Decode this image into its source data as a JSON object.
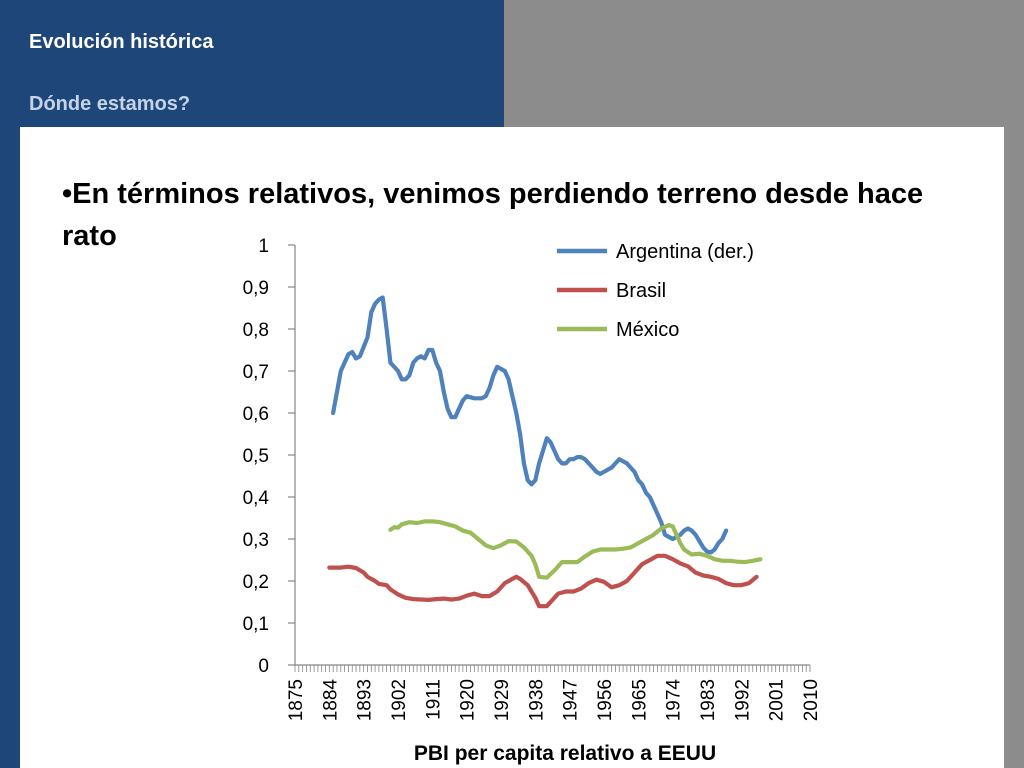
{
  "header": {
    "title": "Evolución histórica",
    "subtitle": "Dónde estamos?"
  },
  "slide": {
    "bullet": "•En términos relativos, venimos perdiendo terreno desde hace rato"
  },
  "colors": {
    "header_bg": "#1f4679",
    "right_panel": "#8c8c8c",
    "argentina": "#4f81bd",
    "brasil": "#c0504d",
    "mexico": "#9bbb59"
  },
  "chart_data": {
    "type": "line",
    "title": "",
    "xlabel": "PBI per capita relativo a EEUU",
    "ylabel": "",
    "xlim": [
      1875,
      2010
    ],
    "ylim": [
      0,
      1
    ],
    "y_ticks": [
      "0",
      "0,1",
      "0,2",
      "0,3",
      "0,4",
      "0,5",
      "0,6",
      "0,7",
      "0,8",
      "0,9",
      "1"
    ],
    "x_ticks": [
      "1875",
      "1884",
      "1893",
      "1902",
      "1911",
      "1920",
      "1929",
      "1938",
      "1947",
      "1956",
      "1965",
      "1974",
      "1983",
      "1992",
      "2001",
      "2010"
    ],
    "legend_position": "top-right",
    "grid": false,
    "series": [
      {
        "name": "Argentina (der.)",
        "color": "#4f81bd",
        "points": [
          [
            1885,
            0.6
          ],
          [
            1887,
            0.7
          ],
          [
            1889,
            0.74
          ],
          [
            1890,
            0.745
          ],
          [
            1891,
            0.73
          ],
          [
            1892,
            0.735
          ],
          [
            1894,
            0.78
          ],
          [
            1895,
            0.84
          ],
          [
            1896,
            0.86
          ],
          [
            1897,
            0.87
          ],
          [
            1898,
            0.875
          ],
          [
            1899,
            0.8
          ],
          [
            1900,
            0.72
          ],
          [
            1902,
            0.7
          ],
          [
            1903,
            0.68
          ],
          [
            1904,
            0.68
          ],
          [
            1905,
            0.69
          ],
          [
            1906,
            0.72
          ],
          [
            1907,
            0.73
          ],
          [
            1908,
            0.735
          ],
          [
            1909,
            0.73
          ],
          [
            1910,
            0.75
          ],
          [
            1911,
            0.75
          ],
          [
            1912,
            0.72
          ],
          [
            1913,
            0.7
          ],
          [
            1914,
            0.65
          ],
          [
            1915,
            0.61
          ],
          [
            1916,
            0.59
          ],
          [
            1917,
            0.59
          ],
          [
            1918,
            0.61
          ],
          [
            1919,
            0.63
          ],
          [
            1920,
            0.64
          ],
          [
            1922,
            0.635
          ],
          [
            1924,
            0.635
          ],
          [
            1925,
            0.64
          ],
          [
            1926,
            0.66
          ],
          [
            1927,
            0.69
          ],
          [
            1928,
            0.71
          ],
          [
            1930,
            0.7
          ],
          [
            1931,
            0.68
          ],
          [
            1932,
            0.64
          ],
          [
            1933,
            0.6
          ],
          [
            1934,
            0.55
          ],
          [
            1935,
            0.48
          ],
          [
            1936,
            0.44
          ],
          [
            1937,
            0.43
          ],
          [
            1938,
            0.44
          ],
          [
            1939,
            0.48
          ],
          [
            1940,
            0.51
          ],
          [
            1941,
            0.54
          ],
          [
            1942,
            0.53
          ],
          [
            1943,
            0.51
          ],
          [
            1944,
            0.49
          ],
          [
            1945,
            0.48
          ],
          [
            1946,
            0.48
          ],
          [
            1947,
            0.49
          ],
          [
            1948,
            0.49
          ],
          [
            1949,
            0.495
          ],
          [
            1950,
            0.495
          ],
          [
            1951,
            0.49
          ],
          [
            1952,
            0.48
          ],
          [
            1953,
            0.47
          ],
          [
            1954,
            0.46
          ],
          [
            1955,
            0.455
          ],
          [
            1956,
            0.46
          ],
          [
            1957,
            0.465
          ],
          [
            1958,
            0.47
          ],
          [
            1959,
            0.48
          ],
          [
            1960,
            0.49
          ],
          [
            1961,
            0.485
          ],
          [
            1962,
            0.48
          ],
          [
            1963,
            0.47
          ],
          [
            1964,
            0.46
          ],
          [
            1965,
            0.44
          ],
          [
            1966,
            0.43
          ],
          [
            1967,
            0.41
          ],
          [
            1968,
            0.4
          ],
          [
            1969,
            0.38
          ],
          [
            1970,
            0.36
          ],
          [
            1971,
            0.34
          ],
          [
            1972,
            0.31
          ],
          [
            1973,
            0.305
          ],
          [
            1974,
            0.3
          ],
          [
            1975,
            0.305
          ],
          [
            1976,
            0.31
          ],
          [
            1977,
            0.32
          ],
          [
            1978,
            0.325
          ],
          [
            1979,
            0.32
          ],
          [
            1980,
            0.31
          ],
          [
            1981,
            0.295
          ],
          [
            1982,
            0.28
          ],
          [
            1983,
            0.27
          ],
          [
            1984,
            0.268
          ],
          [
            1985,
            0.275
          ],
          [
            1986,
            0.29
          ],
          [
            1987,
            0.3
          ],
          [
            1988,
            0.32
          ]
        ]
      },
      {
        "name": "Brasil",
        "color": "#c0504d",
        "points": [
          [
            1884,
            0.232
          ],
          [
            1887,
            0.232
          ],
          [
            1889,
            0.234
          ],
          [
            1891,
            0.231
          ],
          [
            1893,
            0.22
          ],
          [
            1894,
            0.21
          ],
          [
            1896,
            0.2
          ],
          [
            1897,
            0.193
          ],
          [
            1899,
            0.19
          ],
          [
            1900,
            0.18
          ],
          [
            1902,
            0.168
          ],
          [
            1904,
            0.16
          ],
          [
            1906,
            0.157
          ],
          [
            1908,
            0.156
          ],
          [
            1910,
            0.155
          ],
          [
            1912,
            0.157
          ],
          [
            1914,
            0.158
          ],
          [
            1916,
            0.156
          ],
          [
            1918,
            0.158
          ],
          [
            1920,
            0.165
          ],
          [
            1922,
            0.17
          ],
          [
            1924,
            0.164
          ],
          [
            1926,
            0.164
          ],
          [
            1928,
            0.175
          ],
          [
            1930,
            0.195
          ],
          [
            1932,
            0.205
          ],
          [
            1933,
            0.21
          ],
          [
            1934,
            0.205
          ],
          [
            1936,
            0.19
          ],
          [
            1938,
            0.16
          ],
          [
            1939,
            0.14
          ],
          [
            1941,
            0.14
          ],
          [
            1943,
            0.16
          ],
          [
            1944,
            0.17
          ],
          [
            1946,
            0.175
          ],
          [
            1948,
            0.175
          ],
          [
            1950,
            0.182
          ],
          [
            1952,
            0.195
          ],
          [
            1954,
            0.203
          ],
          [
            1956,
            0.198
          ],
          [
            1958,
            0.185
          ],
          [
            1960,
            0.19
          ],
          [
            1962,
            0.2
          ],
          [
            1964,
            0.22
          ],
          [
            1966,
            0.24
          ],
          [
            1968,
            0.25
          ],
          [
            1970,
            0.26
          ],
          [
            1972,
            0.26
          ],
          [
            1974,
            0.252
          ],
          [
            1976,
            0.242
          ],
          [
            1978,
            0.235
          ],
          [
            1980,
            0.22
          ],
          [
            1982,
            0.213
          ],
          [
            1984,
            0.21
          ],
          [
            1986,
            0.205
          ],
          [
            1988,
            0.195
          ],
          [
            1990,
            0.19
          ],
          [
            1992,
            0.19
          ],
          [
            1994,
            0.195
          ],
          [
            1996,
            0.21
          ]
        ]
      },
      {
        "name": "México",
        "color": "#9bbb59",
        "points": [
          [
            1900,
            0.322
          ],
          [
            1901,
            0.328
          ],
          [
            1902,
            0.327
          ],
          [
            1903,
            0.335
          ],
          [
            1905,
            0.34
          ],
          [
            1907,
            0.338
          ],
          [
            1909,
            0.342
          ],
          [
            1911,
            0.342
          ],
          [
            1913,
            0.34
          ],
          [
            1915,
            0.335
          ],
          [
            1917,
            0.33
          ],
          [
            1919,
            0.32
          ],
          [
            1921,
            0.315
          ],
          [
            1923,
            0.3
          ],
          [
            1925,
            0.285
          ],
          [
            1927,
            0.278
          ],
          [
            1929,
            0.285
          ],
          [
            1931,
            0.295
          ],
          [
            1933,
            0.294
          ],
          [
            1935,
            0.28
          ],
          [
            1937,
            0.26
          ],
          [
            1938,
            0.24
          ],
          [
            1939,
            0.21
          ],
          [
            1941,
            0.208
          ],
          [
            1943,
            0.225
          ],
          [
            1945,
            0.245
          ],
          [
            1947,
            0.245
          ],
          [
            1949,
            0.245
          ],
          [
            1951,
            0.258
          ],
          [
            1953,
            0.27
          ],
          [
            1955,
            0.275
          ],
          [
            1957,
            0.275
          ],
          [
            1959,
            0.275
          ],
          [
            1961,
            0.277
          ],
          [
            1963,
            0.28
          ],
          [
            1965,
            0.29
          ],
          [
            1967,
            0.3
          ],
          [
            1969,
            0.31
          ],
          [
            1971,
            0.325
          ],
          [
            1973,
            0.333
          ],
          [
            1974,
            0.33
          ],
          [
            1975,
            0.31
          ],
          [
            1976,
            0.29
          ],
          [
            1977,
            0.275
          ],
          [
            1979,
            0.263
          ],
          [
            1981,
            0.265
          ],
          [
            1983,
            0.26
          ],
          [
            1985,
            0.252
          ],
          [
            1987,
            0.248
          ],
          [
            1989,
            0.248
          ],
          [
            1991,
            0.246
          ],
          [
            1993,
            0.245
          ],
          [
            1995,
            0.248
          ],
          [
            1997,
            0.252
          ]
        ]
      }
    ]
  }
}
